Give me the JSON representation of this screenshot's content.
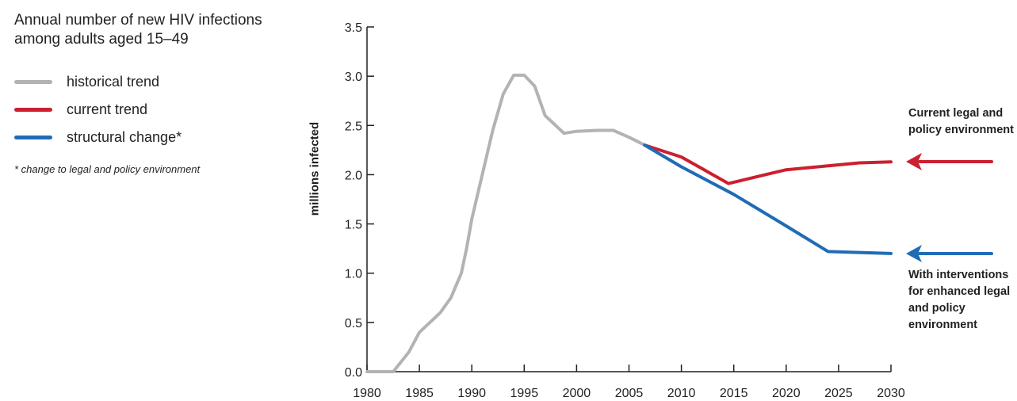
{
  "title_lines": [
    "Annual number of new HIV infections",
    "among adults aged 15–49"
  ],
  "legend": [
    {
      "label": "historical trend",
      "color": "#b3b3b3"
    },
    {
      "label": "current trend",
      "color": "#cc1f2f"
    },
    {
      "label": "structural change*",
      "color": "#1f6cb5"
    }
  ],
  "footnote": "* change to legal and policy environment",
  "annotations": {
    "current": [
      "Current legal and",
      "policy environment"
    ],
    "interventions": [
      "With interventions",
      "for enhanced legal",
      "and policy",
      "environment"
    ]
  },
  "chart_data": {
    "type": "line",
    "ylabel": "millions infected",
    "xlim": [
      1980,
      2030
    ],
    "ylim": [
      0,
      3.5
    ],
    "x_ticks": [
      1980,
      1985,
      1990,
      1995,
      2000,
      2005,
      2010,
      2015,
      2020,
      2025,
      2030
    ],
    "y_ticks": [
      "0.0",
      "0.5",
      "1.0",
      "1.5",
      "2.0",
      "2.5",
      "3.0",
      "3.5"
    ],
    "series": [
      {
        "name": "historical trend",
        "color": "#b3b3b3",
        "x": [
          1980,
          1982.5,
          1984,
          1985,
          1986,
          1987,
          1988,
          1989,
          1989.5,
          1990,
          1991,
          1992,
          1993,
          1994,
          1995,
          1996,
          1997,
          1998,
          1998.8,
          2000,
          2002,
          2003.5,
          2005,
          2006.5
        ],
        "y": [
          0.0,
          0.0,
          0.2,
          0.4,
          0.5,
          0.6,
          0.75,
          1.0,
          1.25,
          1.55,
          2.0,
          2.45,
          2.82,
          3.01,
          3.01,
          2.9,
          2.6,
          2.5,
          2.42,
          2.44,
          2.45,
          2.45,
          2.38,
          2.3
        ]
      },
      {
        "name": "current trend",
        "color": "#cc1f2f",
        "x": [
          2006.5,
          2010,
          2014.5,
          2018,
          2020,
          2023,
          2027,
          2030
        ],
        "y": [
          2.3,
          2.18,
          1.91,
          2.0,
          2.05,
          2.08,
          2.12,
          2.13
        ]
      },
      {
        "name": "structural change",
        "color": "#1f6cb5",
        "x": [
          2006.5,
          2010,
          2015,
          2020,
          2024,
          2030
        ],
        "y": [
          2.3,
          2.08,
          1.8,
          1.48,
          1.22,
          1.2
        ]
      }
    ]
  }
}
